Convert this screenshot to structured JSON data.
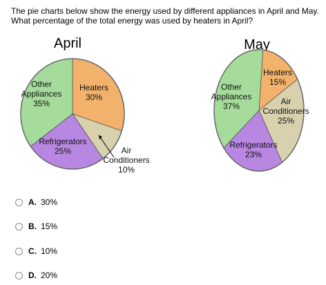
{
  "question": {
    "line1": "The pie charts below show the energy used by different appliances in April and May.",
    "line2": "What percentage of the total energy was used by heaters in April?"
  },
  "chart_data": [
    {
      "type": "pie",
      "title": "April",
      "slices": [
        {
          "name": "Heaters",
          "value": 30,
          "color": "#f2b26b",
          "label_lines": [
            "Heaters",
            "30%"
          ]
        },
        {
          "name": "Air Conditioners",
          "value": 10,
          "color": "#d9d1ae",
          "label_lines": [
            "Air",
            "Conditioners",
            "10%"
          ]
        },
        {
          "name": "Refrigerators",
          "value": 25,
          "color": "#b787e2",
          "label_lines": [
            "Refrigerators",
            "25%"
          ]
        },
        {
          "name": "Other Appliances",
          "value": 35,
          "color": "#a5dc9b",
          "label_lines": [
            "Other",
            "Appliances",
            "35%"
          ]
        }
      ]
    },
    {
      "type": "pie",
      "title": "May",
      "slices": [
        {
          "name": "Heaters",
          "value": 15,
          "color": "#f2b26b",
          "label_lines": [
            "Heaters",
            "15%"
          ]
        },
        {
          "name": "Air Conditioners",
          "value": 25,
          "color": "#d9d1ae",
          "label_lines": [
            "Air",
            "Conditioners",
            "25%"
          ]
        },
        {
          "name": "Refrigerators",
          "value": 23,
          "color": "#b787e2",
          "label_lines": [
            "Refrigerators",
            "23%"
          ]
        },
        {
          "name": "Other Appliances",
          "value": 37,
          "color": "#a5dc9b",
          "label_lines": [
            "Other",
            "Appliances",
            "37%"
          ]
        }
      ]
    }
  ],
  "choices": [
    {
      "letter": "A.",
      "text": "30%"
    },
    {
      "letter": "B.",
      "text": "15%"
    },
    {
      "letter": "C.",
      "text": "10%"
    },
    {
      "letter": "D.",
      "text": "20%"
    }
  ]
}
